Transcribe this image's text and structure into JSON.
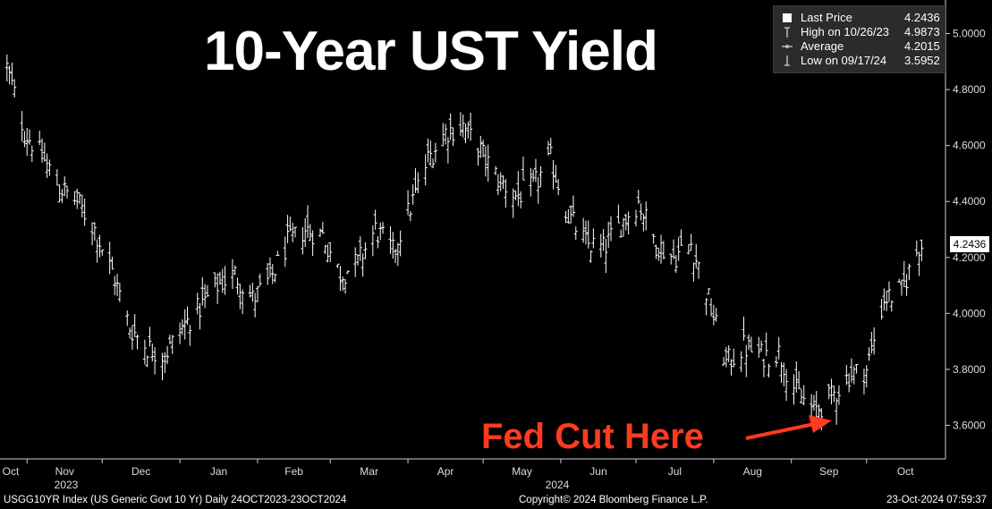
{
  "chart_data": {
    "type": "ohlc",
    "title": "10-Year UST Yield",
    "ylim": [
      3.48,
      5.12
    ],
    "y_ticks": [
      "3.6000",
      "3.8000",
      "4.0000",
      "4.2000",
      "4.4000",
      "4.6000",
      "4.8000",
      "5.0000"
    ],
    "x_month_labels": [
      "Oct",
      "Nov",
      "Dec",
      "Jan",
      "Feb",
      "Mar",
      "Apr",
      "May",
      "Jun",
      "Jul",
      "Aug",
      "Sep",
      "Oct"
    ],
    "x_year_labels": [
      "2023",
      "2024"
    ],
    "series": [
      {
        "dates": [
          "2023-10-24",
          "2023-10-31",
          "2023-11-07",
          "2023-11-14",
          "2023-11-21",
          "2023-11-28",
          "2023-12-05",
          "2023-12-12",
          "2023-12-19",
          "2023-12-26",
          "2024-01-02",
          "2024-01-09",
          "2024-01-16",
          "2024-01-23",
          "2024-01-30",
          "2024-02-06",
          "2024-02-13",
          "2024-02-20",
          "2024-02-27",
          "2024-03-05",
          "2024-03-12",
          "2024-03-19",
          "2024-03-26",
          "2024-04-02",
          "2024-04-09",
          "2024-04-16",
          "2024-04-23",
          "2024-04-30",
          "2024-05-07",
          "2024-05-14",
          "2024-05-21",
          "2024-05-28",
          "2024-06-04",
          "2024-06-11",
          "2024-06-18",
          "2024-06-25",
          "2024-07-02",
          "2024-07-09",
          "2024-07-16",
          "2024-07-23",
          "2024-07-30",
          "2024-08-06",
          "2024-08-13",
          "2024-08-20",
          "2024-08-27",
          "2024-09-03",
          "2024-09-10",
          "2024-09-17",
          "2024-09-24",
          "2024-10-01",
          "2024-10-08",
          "2024-10-15",
          "2024-10-22"
        ],
        "values": [
          4.88,
          4.65,
          4.56,
          4.45,
          4.4,
          4.3,
          4.15,
          3.95,
          3.88,
          3.85,
          3.95,
          4.02,
          4.1,
          4.14,
          4.05,
          4.12,
          4.25,
          4.3,
          4.28,
          4.14,
          4.18,
          4.3,
          4.22,
          4.38,
          4.55,
          4.65,
          4.67,
          4.58,
          4.48,
          4.42,
          4.45,
          4.55,
          4.35,
          4.25,
          4.23,
          4.32,
          4.4,
          4.25,
          4.2,
          4.25,
          4.05,
          3.82,
          3.88,
          3.85,
          3.86,
          3.72,
          3.65,
          3.7,
          3.78,
          3.8,
          4.05,
          4.08,
          4.2436
        ]
      }
    ],
    "legend": {
      "last_price": {
        "label": "Last Price",
        "value": "4.2436"
      },
      "high": {
        "label": "High on 10/26/23",
        "value": "4.9873"
      },
      "average": {
        "label": "Average",
        "value": "4.2015"
      },
      "low": {
        "label": "Low on 09/17/24",
        "value": "3.5952"
      }
    },
    "last_price_tag": "4.2436",
    "annotation": "Fed Cut Here"
  },
  "footer": {
    "left": "USGG10YR Index (US Generic Govt 10 Yr)  Daily 24OCT2023-23OCT2024",
    "center": "Copyright© 2024 Bloomberg Finance L.P.",
    "right": "23-Oct-2024 07:59:37"
  },
  "colors": {
    "background": "#000000",
    "bars": "#ffffff",
    "axis": "#cfcfcf",
    "annotation": "#ff3b1f",
    "legend_bg": "#2b2b2b"
  }
}
